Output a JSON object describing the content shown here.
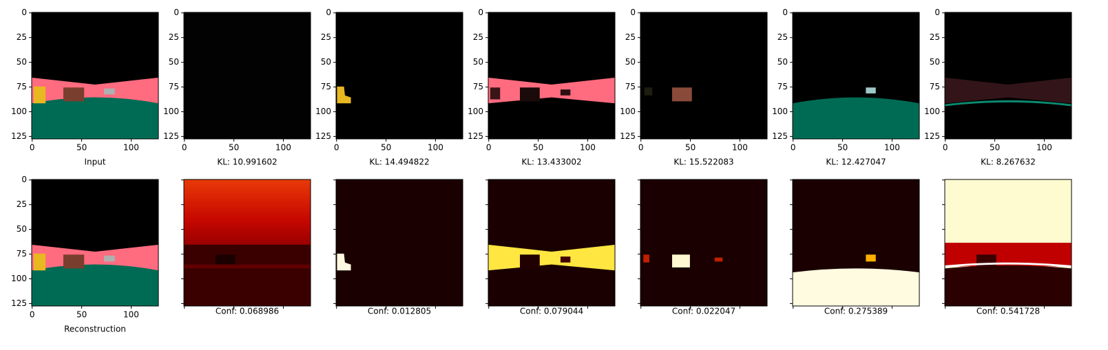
{
  "xlim": [
    -0.5,
    127.5
  ],
  "ylim": [
    127.5,
    -0.5
  ],
  "xticks": [
    0,
    50,
    100
  ],
  "yticks": [
    0,
    25,
    50,
    75,
    100,
    125
  ],
  "top_row": [
    {
      "caption": "Input",
      "tick_labels": true
    },
    {
      "caption": "KL: 10.991602",
      "tick_labels": true
    },
    {
      "caption": "KL: 14.494822",
      "tick_labels": true
    },
    {
      "caption": "KL: 13.433002",
      "tick_labels": true
    },
    {
      "caption": "KL: 15.522083",
      "tick_labels": true
    },
    {
      "caption": "KL: 12.427047",
      "tick_labels": true
    },
    {
      "caption": "KL: 8.267632",
      "tick_labels": true
    }
  ],
  "bottom_row": [
    {
      "caption": "Reconstruction",
      "tick_labels": true
    },
    {
      "caption": "Conf: 0.068986",
      "tick_labels": false
    },
    {
      "caption": "Conf: 0.012805",
      "tick_labels": false
    },
    {
      "caption": "Conf: 0.079044",
      "tick_labels": false
    },
    {
      "caption": "Conf: 0.022047",
      "tick_labels": false
    },
    {
      "caption": "Conf: 0.275389",
      "tick_labels": false
    },
    {
      "caption": "Conf: 0.541728",
      "tick_labels": false
    }
  ]
}
